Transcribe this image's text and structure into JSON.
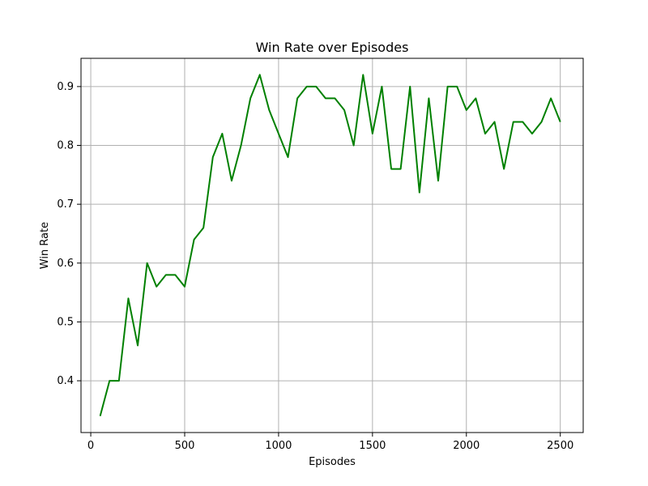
{
  "chart_data": {
    "type": "line",
    "title": "Win Rate over Episodes",
    "xlabel": "Episodes",
    "ylabel": "Win Rate",
    "xlim": [
      -52,
      2622
    ],
    "ylim": [
      0.312,
      0.948
    ],
    "xticks": [
      0,
      500,
      1000,
      1500,
      2000,
      2500
    ],
    "yticks": [
      0.4,
      0.5,
      0.6,
      0.7,
      0.8,
      0.9
    ],
    "xtick_labels": [
      "0",
      "500",
      "1000",
      "1500",
      "2000",
      "2500"
    ],
    "ytick_labels": [
      "0.4",
      "0.5",
      "0.6",
      "0.7",
      "0.8",
      "0.9"
    ],
    "grid": true,
    "series": [
      {
        "color": "#008000",
        "x": [
          50,
          100,
          150,
          200,
          250,
          300,
          350,
          400,
          450,
          500,
          550,
          600,
          650,
          700,
          750,
          800,
          850,
          900,
          950,
          1000,
          1050,
          1100,
          1150,
          1200,
          1250,
          1300,
          1350,
          1400,
          1450,
          1500,
          1550,
          1600,
          1650,
          1700,
          1750,
          1800,
          1850,
          1900,
          1950,
          2000,
          2050,
          2100,
          2150,
          2200,
          2250,
          2300,
          2350,
          2400,
          2450,
          2500
        ],
        "y": [
          0.34,
          0.4,
          0.4,
          0.54,
          0.46,
          0.6,
          0.56,
          0.58,
          0.58,
          0.56,
          0.64,
          0.66,
          0.78,
          0.82,
          0.74,
          0.8,
          0.88,
          0.92,
          0.86,
          0.82,
          0.78,
          0.88,
          0.9,
          0.9,
          0.88,
          0.88,
          0.86,
          0.8,
          0.92,
          0.82,
          0.9,
          0.76,
          0.76,
          0.9,
          0.72,
          0.88,
          0.74,
          0.9,
          0.9,
          0.86,
          0.88,
          0.82,
          0.84,
          0.76,
          0.84,
          0.84,
          0.82,
          0.84,
          0.88,
          0.84
        ]
      }
    ]
  }
}
